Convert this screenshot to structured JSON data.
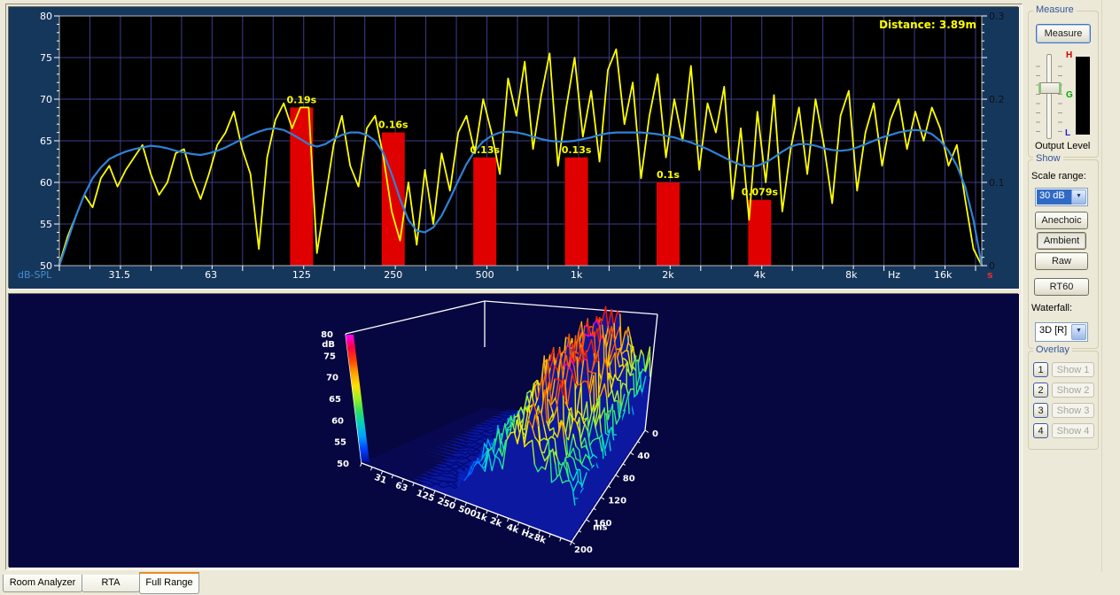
{
  "window": {
    "background": "#ece9d8",
    "accent_tab": "#e68b2c"
  },
  "tabs": [
    {
      "label": "Room Analyzer",
      "active": false
    },
    {
      "label": "RTA",
      "active": false
    },
    {
      "label": "Full Range",
      "active": true
    }
  ],
  "sidebar": {
    "measure": {
      "group_label": "Measure",
      "button_label": "Measure",
      "output_level_label": "Output Level",
      "meter_high": "H",
      "meter_mid": "G",
      "meter_low": "L"
    },
    "show": {
      "group_label": "Show",
      "scale_range_label": "Scale range:",
      "scale_range_value": "30 dB",
      "anechoic_label": "Anechoic",
      "ambient_label": "Ambient",
      "raw_label": "Raw",
      "rt60_label": "RT60",
      "waterfall_label": "Waterfall:",
      "waterfall_value": "3D [R]",
      "dropdown_arrow": "▼"
    },
    "overlay": {
      "group_label": "Overlay",
      "rows": [
        {
          "num": "1",
          "show": "Show 1"
        },
        {
          "num": "2",
          "show": "Show 2"
        },
        {
          "num": "3",
          "show": "Show 3"
        },
        {
          "num": "4",
          "show": "Show 4"
        }
      ]
    }
  },
  "chart_data": [
    {
      "type": "line+bar",
      "title_annotation": "Distance: 3.89m",
      "annotation_color": "#ffff00",
      "panel_bg": "#16375c",
      "plot_bg": "#000000",
      "grid_color": "#3c3c8e",
      "axis_color": "#b8b8b8",
      "tick_color": "#ffffff",
      "x_axis": {
        "scale": "log-octaves-from-20Hz",
        "ticks": [
          {
            "label": "31.5",
            "f": 31.5
          },
          {
            "label": "63",
            "f": 63
          },
          {
            "label": "125",
            "f": 125
          },
          {
            "label": "250",
            "f": 250
          },
          {
            "label": "500",
            "f": 500
          },
          {
            "label": "1k",
            "f": 1000
          },
          {
            "label": "2k",
            "f": 2000
          },
          {
            "label": "4k",
            "f": 4000
          },
          {
            "label": "8k",
            "f": 8000
          },
          {
            "label": "Hz",
            "o": 9.11
          },
          {
            "label": "16k",
            "f": 16000
          }
        ]
      },
      "y_left": {
        "label": "dB-SPL",
        "label_color": "#3f8fd0",
        "min": 50,
        "max": 80,
        "tick_step": 5
      },
      "y_right": {
        "unit": "s",
        "unit_color": "#e03030",
        "min": 0,
        "max": 0.3,
        "ticks": [
          "0.3",
          "0.2",
          "0.1",
          "0"
        ],
        "tick_values": [
          0.3,
          0.2,
          0.1,
          0
        ]
      },
      "rt60_bars": {
        "color": "#e10000",
        "label_color": "#ffff00",
        "freqs": [
          125,
          250,
          500,
          1000,
          2000,
          4000
        ],
        "values_s": [
          0.19,
          0.16,
          0.13,
          0.13,
          0.1,
          0.079
        ],
        "labels": [
          "0.19s",
          "0.16s",
          "0.13s",
          "0.13s",
          "0.1s",
          "0.079s"
        ]
      },
      "octave_step": 0.0907,
      "series": [
        {
          "name": "raw-response",
          "color": "#ffff00",
          "width": 1.8,
          "values_db": [
            50.2,
            53.5,
            56.0,
            58.5,
            57.0,
            60.5,
            62.0,
            59.5,
            61.5,
            63.0,
            64.5,
            61.0,
            58.5,
            60.0,
            63.5,
            64.0,
            60.5,
            58.0,
            61.0,
            64.5,
            66.0,
            68.5,
            64.0,
            61.0,
            52.0,
            63.0,
            67.5,
            69.5,
            66.5,
            69.0,
            69.0,
            51.5,
            58.0,
            64.5,
            68.0,
            62.0,
            59.5,
            66.5,
            68.0,
            63.0,
            56.5,
            53.0,
            60.0,
            52.5,
            61.5,
            55.0,
            63.5,
            59.0,
            66.0,
            68.0,
            63.5,
            70.0,
            66.0,
            61.0,
            72.5,
            68.0,
            74.5,
            64.0,
            70.5,
            75.5,
            62.0,
            69.0,
            75.0,
            65.5,
            71.0,
            62.5,
            73.5,
            76.0,
            67.0,
            72.0,
            60.5,
            68.0,
            73.0,
            63.0,
            70.0,
            65.0,
            74.0,
            61.5,
            69.5,
            66.0,
            71.5,
            58.0,
            66.5,
            55.5,
            68.5,
            60.0,
            70.5,
            56.5,
            64.0,
            69.0,
            61.0,
            70.0,
            64.5,
            57.5,
            68.0,
            71.0,
            59.0,
            66.0,
            69.5,
            62.0,
            67.5,
            70.0,
            64.0,
            68.5,
            65.0,
            69.0,
            66.5,
            62.0,
            64.5,
            58.0,
            52.0,
            50.0
          ]
        },
        {
          "name": "smoothed-response",
          "color": "#2f81d8",
          "width": 2.2,
          "values_db": [
            50.0,
            53.0,
            56.0,
            58.5,
            60.5,
            61.8,
            62.8,
            63.3,
            63.7,
            64.0,
            64.2,
            64.4,
            64.3,
            64.1,
            63.8,
            63.6,
            63.4,
            63.3,
            63.5,
            63.8,
            64.2,
            64.7,
            65.2,
            65.7,
            66.1,
            66.4,
            66.5,
            66.3,
            65.8,
            65.2,
            64.6,
            64.3,
            64.6,
            65.2,
            65.7,
            66.0,
            66.0,
            65.7,
            65.0,
            63.5,
            61.0,
            58.0,
            55.5,
            54.2,
            54.0,
            54.6,
            56.0,
            58.0,
            60.2,
            62.2,
            63.8,
            64.9,
            65.6,
            66.0,
            66.1,
            66.0,
            65.8,
            65.5,
            65.2,
            65.0,
            64.9,
            64.9,
            65.0,
            65.2,
            65.4,
            65.7,
            65.9,
            66.0,
            66.0,
            66.0,
            66.0,
            65.9,
            65.8,
            65.6,
            65.4,
            65.1,
            64.8,
            64.4,
            64.0,
            63.5,
            63.0,
            62.5,
            62.1,
            61.9,
            62.0,
            62.4,
            63.0,
            63.7,
            64.3,
            64.6,
            64.6,
            64.4,
            64.1,
            63.9,
            63.8,
            63.9,
            64.2,
            64.6,
            65.0,
            65.4,
            65.7,
            66.0,
            66.2,
            66.3,
            66.2,
            65.8,
            65.0,
            63.8,
            62.0,
            59.5,
            55.5,
            50.0
          ]
        }
      ]
    },
    {
      "type": "3d-waterfall",
      "panel_bg": "#060640",
      "box_color": "#ffffff",
      "label_color": "#ffffff",
      "floor_color": "#080850",
      "body_color": "#0d18a0",
      "db_axis": {
        "label": "dB",
        "min": 50,
        "max": 80,
        "ticks": [
          "80",
          "75",
          "70",
          "65",
          "60",
          "55",
          "50"
        ]
      },
      "freq_axis": {
        "labels": [
          "31",
          "63",
          "125",
          "250",
          "500",
          "1k",
          "2k",
          "4k",
          "Hz",
          "8k"
        ],
        "label_s": [
          0.05,
          0.15,
          0.25,
          0.35,
          0.45,
          0.53,
          0.6,
          0.68,
          0.75,
          0.81
        ]
      },
      "time_axis": {
        "unit": "ms",
        "labels": [
          "0",
          "40",
          "80",
          "120",
          "160"
        ],
        "values_ms": [
          0,
          40,
          80,
          120,
          160,
          200
        ],
        "end_label": "200"
      },
      "levels_db": {
        "time_steps_ms": [
          0,
          50,
          100,
          150,
          200
        ],
        "grid": [
          [
            50,
            50,
            50.5,
            51,
            54,
            62,
            71,
            74,
            69,
            63
          ],
          [
            50,
            50,
            51,
            52,
            56,
            64,
            74,
            78,
            71,
            64
          ],
          [
            50,
            50,
            50.5,
            52,
            55,
            63,
            72,
            77,
            70,
            63
          ],
          [
            50,
            50,
            50,
            51.5,
            54,
            61,
            69,
            73,
            68,
            62
          ],
          [
            50,
            50,
            50,
            51,
            53,
            59,
            66,
            70,
            66,
            61
          ]
        ]
      },
      "colormap": [
        [
          0,
          "#000a78"
        ],
        [
          0.1,
          "#0028c8"
        ],
        [
          0.2,
          "#0064ff"
        ],
        [
          0.3,
          "#00a0f8"
        ],
        [
          0.38,
          "#00d8d0"
        ],
        [
          0.48,
          "#30e878"
        ],
        [
          0.58,
          "#a8f030"
        ],
        [
          0.66,
          "#f0e800"
        ],
        [
          0.74,
          "#ffb000"
        ],
        [
          0.82,
          "#ff5800"
        ],
        [
          0.9,
          "#ff1800"
        ],
        [
          0.97,
          "#ff00cc"
        ]
      ],
      "gradient_bar_colors": [
        "#ff00ff",
        "#ff0040",
        "#ff4000",
        "#ffa000",
        "#ffe000",
        "#a0f020",
        "#30e060",
        "#00d0c0",
        "#00a0ff",
        "#0040ff",
        "#0010a0"
      ]
    }
  ]
}
